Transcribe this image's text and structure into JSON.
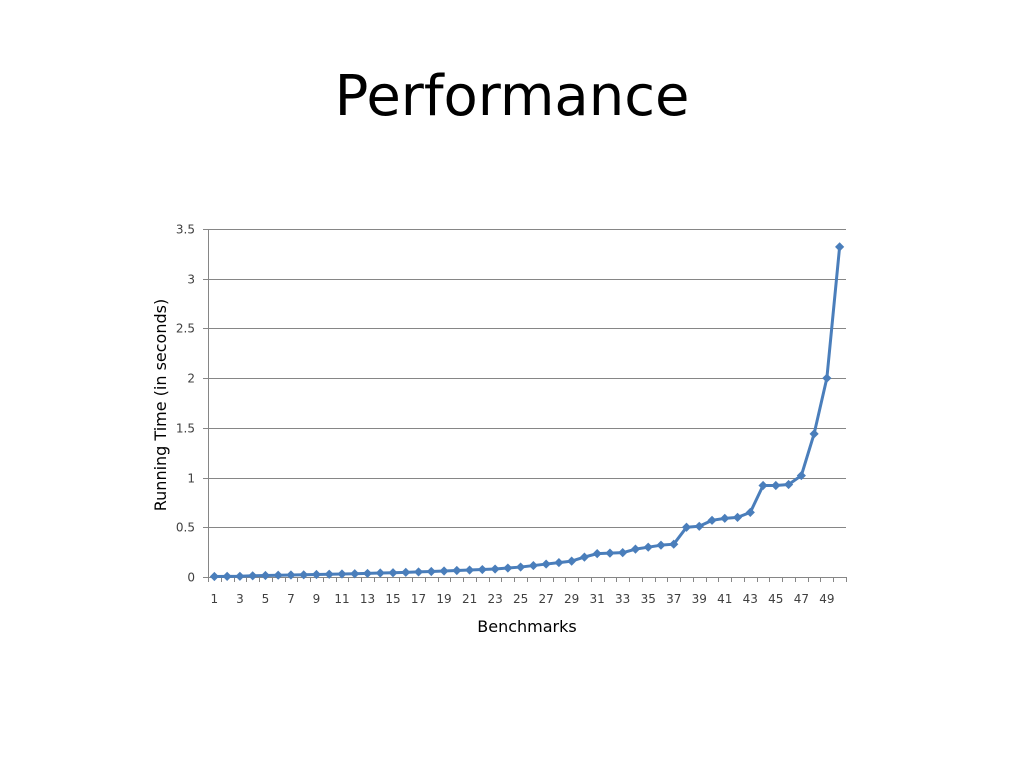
{
  "slide": {
    "title": "Performance"
  },
  "chart_data": {
    "type": "line",
    "title": "",
    "xlabel": "Benchmarks",
    "ylabel": "Running Time (in seconds)",
    "ylim": [
      0,
      3.5
    ],
    "yticks": [
      0,
      0.5,
      1,
      1.5,
      2,
      2.5,
      3,
      3.5
    ],
    "ytick_labels": [
      "0",
      "0.5",
      "1",
      "1.5",
      "2",
      "2.5",
      "3",
      "3.5"
    ],
    "xtick_labels": [
      "1",
      "3",
      "5",
      "7",
      "9",
      "11",
      "13",
      "15",
      "17",
      "19",
      "21",
      "23",
      "25",
      "27",
      "29",
      "31",
      "33",
      "35",
      "37",
      "39",
      "41",
      "43",
      "45",
      "47",
      "49"
    ],
    "grid": true,
    "legend": "none",
    "colors": {
      "series": "#4a7ebb",
      "marker": "#4a7ebb",
      "grid": "#868686",
      "axis": "#868686"
    },
    "x": [
      1,
      2,
      3,
      4,
      5,
      6,
      7,
      8,
      9,
      10,
      11,
      12,
      13,
      14,
      15,
      16,
      17,
      18,
      19,
      20,
      21,
      22,
      23,
      24,
      25,
      26,
      27,
      28,
      29,
      30,
      31,
      32,
      33,
      34,
      35,
      36,
      37,
      38,
      39,
      40,
      41,
      42,
      43,
      44,
      45,
      46,
      47,
      48,
      49,
      50
    ],
    "series": [
      {
        "values": [
          0.005,
          0.006,
          0.007,
          0.012,
          0.015,
          0.018,
          0.02,
          0.022,
          0.025,
          0.028,
          0.03,
          0.033,
          0.036,
          0.04,
          0.043,
          0.047,
          0.051,
          0.055,
          0.06,
          0.065,
          0.07,
          0.075,
          0.08,
          0.09,
          0.1,
          0.115,
          0.13,
          0.145,
          0.16,
          0.2,
          0.235,
          0.24,
          0.245,
          0.28,
          0.3,
          0.32,
          0.33,
          0.5,
          0.51,
          0.57,
          0.59,
          0.6,
          0.65,
          0.92,
          0.92,
          0.93,
          1.02,
          1.44,
          2.0,
          3.32
        ]
      }
    ]
  }
}
